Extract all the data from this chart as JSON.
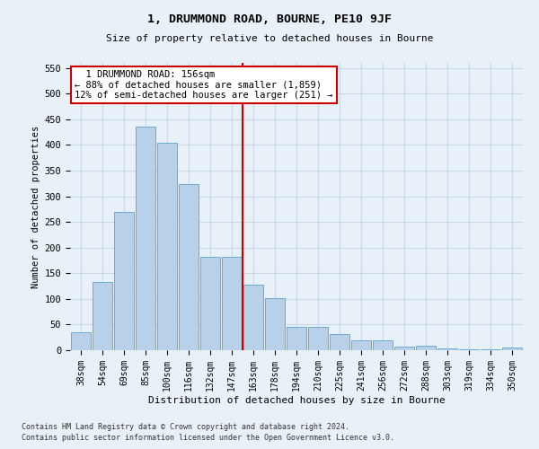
{
  "title": "1, DRUMMOND ROAD, BOURNE, PE10 9JF",
  "subtitle": "Size of property relative to detached houses in Bourne",
  "xlabel": "Distribution of detached houses by size in Bourne",
  "ylabel": "Number of detached properties",
  "categories": [
    "38sqm",
    "54sqm",
    "69sqm",
    "85sqm",
    "100sqm",
    "116sqm",
    "132sqm",
    "147sqm",
    "163sqm",
    "178sqm",
    "194sqm",
    "210sqm",
    "225sqm",
    "241sqm",
    "256sqm",
    "272sqm",
    "288sqm",
    "303sqm",
    "319sqm",
    "334sqm",
    "350sqm"
  ],
  "values": [
    35,
    133,
    270,
    435,
    405,
    323,
    182,
    182,
    127,
    102,
    45,
    45,
    32,
    20,
    20,
    7,
    8,
    3,
    2,
    2,
    5
  ],
  "bar_color": "#b8d0e8",
  "bar_edge_color": "#6aaad4",
  "vline_color": "#cc0000",
  "annotation_text": "  1 DRUMMOND ROAD: 156sqm  \n← 88% of detached houses are smaller (1,859)\n12% of semi-detached houses are larger (251) →",
  "annotation_box_color": "#ffffff",
  "annotation_box_edge_color": "#cc0000",
  "ylim": [
    0,
    560
  ],
  "yticks": [
    0,
    50,
    100,
    150,
    200,
    250,
    300,
    350,
    400,
    450,
    500,
    550
  ],
  "grid_color": "#c8d8e8",
  "background_color": "#e8f0f8",
  "footer_line1": "Contains HM Land Registry data © Crown copyright and database right 2024.",
  "footer_line2": "Contains public sector information licensed under the Open Government Licence v3.0."
}
